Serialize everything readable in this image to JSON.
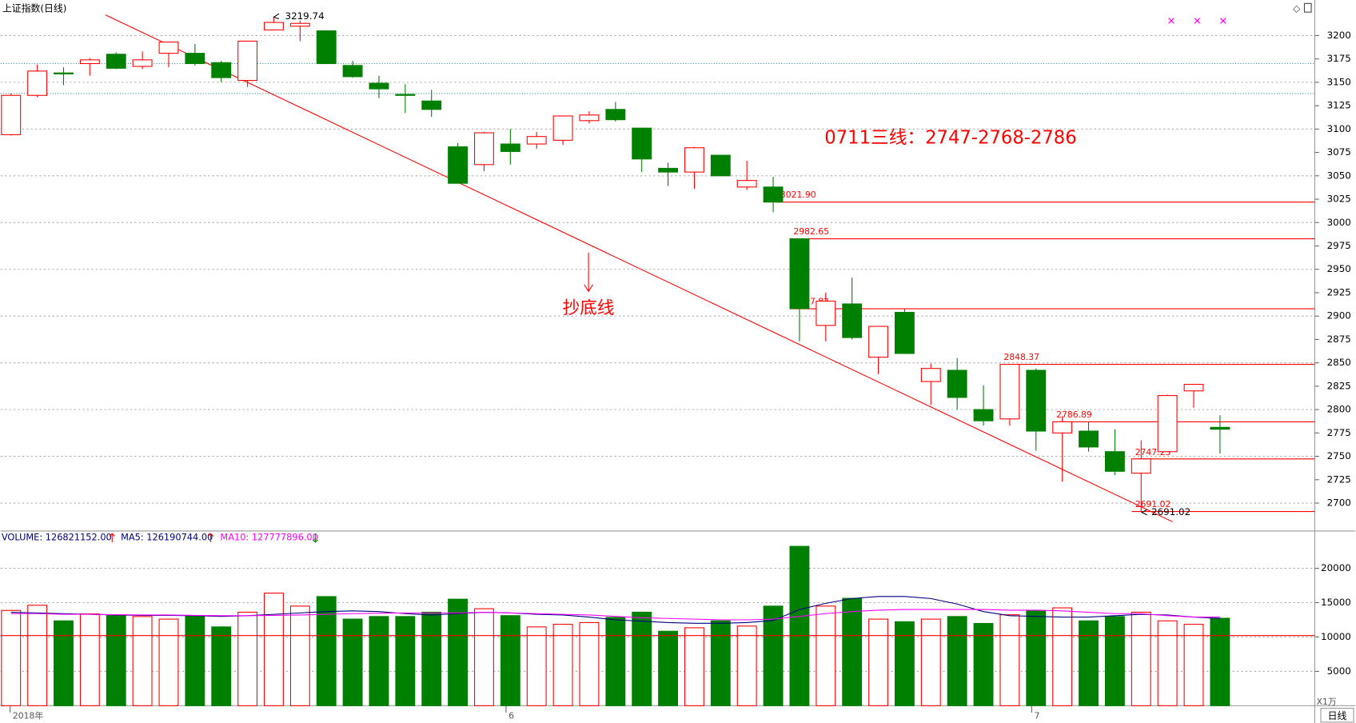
{
  "header": {
    "title": "上证指数(日线)",
    "tab": "日线",
    "unit": "X1万"
  },
  "chart_data": [
    {
      "type": "candlestick",
      "categories": [
        "2018年",
        null,
        null,
        null,
        null,
        null,
        null,
        null,
        null,
        null,
        null,
        null,
        null,
        null,
        null,
        null,
        null,
        null,
        null,
        "6",
        null,
        null,
        null,
        null,
        null,
        null,
        null,
        null,
        null,
        null,
        null,
        null,
        null,
        null,
        null,
        null,
        null,
        null,
        null,
        "7",
        null,
        null,
        null,
        null,
        null,
        null,
        null
      ],
      "open": [
        3094,
        3136,
        3160,
        3170,
        3180,
        3167,
        3181,
        3181,
        3171,
        3152,
        3206,
        3210,
        3205,
        3168,
        3149,
        3137,
        3130,
        3081,
        3062,
        3084,
        3084,
        3088,
        3109,
        3121,
        3101,
        3058,
        3054,
        3072,
        3038,
        3038,
        2982.65,
        2890,
        2913,
        2856,
        2904,
        2830,
        2842,
        2800,
        2790,
        2842,
        2775,
        2777,
        2755,
        2732,
        2755,
        2820,
        2781
      ],
      "high": [
        3138,
        3169,
        3166,
        3176,
        3182,
        3183,
        3193,
        3191,
        3173,
        3194,
        3219.74,
        3216,
        3205,
        3173,
        3157,
        3148,
        3142,
        3085,
        3097,
        3100,
        3097,
        3114,
        3119,
        3129,
        3101,
        3064,
        3081,
        3072,
        3066,
        3049,
        2983,
        2925,
        2941,
        2889,
        2908,
        2849,
        2855,
        2826,
        2848.37,
        2844,
        2793,
        2787,
        2779,
        2767,
        2816,
        2827,
        2794
      ],
      "low": [
        3093,
        3134,
        3147,
        3157,
        3164,
        3164,
        3166,
        3168,
        3150,
        3145,
        3206,
        3194,
        3170,
        3155,
        3133,
        3117,
        3113,
        3042,
        3055,
        3062,
        3079,
        3083,
        3106,
        3108,
        3054,
        3039,
        3036,
        3050,
        3035,
        3011,
        2873,
        2873,
        2875,
        2838,
        2860,
        2805,
        2800,
        2783,
        2783,
        2756,
        2723,
        2755,
        2730,
        2691.02,
        2755,
        2802,
        2753
      ],
      "close": [
        3136,
        3162,
        3159,
        3174,
        3165,
        3174,
        3193,
        3170,
        3155,
        3194,
        3214,
        3213,
        3170,
        3156,
        3143,
        3136,
        3121,
        3042,
        3096,
        3076,
        3092,
        3114,
        3115,
        3110,
        3068,
        3054,
        3080,
        3050,
        3045,
        3021.9,
        2908,
        2916,
        2877,
        2889,
        2860,
        2844,
        2813,
        2788,
        2848.37,
        2777,
        2786.89,
        2760,
        2734,
        2747.23,
        2815,
        2827,
        2779
      ],
      "up_color": "#ff0000",
      "down_color": "#008000",
      "ylim": [
        2672,
        3238
      ],
      "yticks": [
        2700,
        2725,
        2750,
        2775,
        2800,
        2825,
        2850,
        2875,
        2900,
        2925,
        2950,
        2975,
        3000,
        3025,
        3050,
        3075,
        3100,
        3125,
        3150,
        3175,
        3200
      ],
      "grid": true,
      "levels": [
        {
          "value": 3021.9,
          "label": "3021.90"
        },
        2982.65,
        2907.82,
        2848.37,
        2786.89,
        2747.23,
        2691.02
      ],
      "guide_lines": [
        3170,
        3138
      ],
      "trendline": {
        "x": [
          3.6,
          44.2
        ],
        "y": [
          3222,
          2680
        ]
      },
      "high_marker": 3219.74,
      "low_marker": 2691.02,
      "annotations": [
        "0711三线：2747-2768-2786",
        "抄底线"
      ]
    },
    {
      "type": "volume",
      "series": [
        {
          "name": "VOLUME: 126821152.00",
          "color": "#000080",
          "values": [
            13865,
            14620,
            12352,
            13360,
            13108,
            12982,
            12604,
            13108,
            11470,
            13612,
            16385,
            14495,
            15881,
            12604,
            12982,
            12982,
            13612,
            15503,
            14116,
            13108,
            11470,
            11848,
            12100,
            12856,
            13612,
            10839,
            11343,
            12352,
            11596,
            14495,
            23191,
            14495,
            15629,
            12604,
            12226,
            12604,
            12982,
            11974,
            13234,
            13865,
            14242,
            12352,
            12982,
            13612,
            12352,
            11848,
            12730
          ]
        },
        {
          "name": "MA5: 126190744.00",
          "color": "#000080",
          "values": [
            13600,
            13500,
            13400,
            13300,
            13200,
            13150,
            13150,
            13100,
            13000,
            13100,
            13300,
            13500,
            13700,
            13800,
            13700,
            13400,
            13200,
            13400,
            13600,
            13500,
            13300,
            13200,
            12900,
            12500,
            12300,
            12100,
            12000,
            12000,
            12100,
            12400,
            14000,
            14900,
            15600,
            15900,
            15900,
            15600,
            14800,
            13700,
            13100,
            13000,
            12900,
            12900,
            13100,
            13300,
            13200,
            12900,
            12700
          ]
        },
        {
          "name": "MA10: 127777896.00",
          "color": "#ff00ff",
          "values": [
            13400,
            13400,
            13300,
            13300,
            13250,
            13200,
            13200,
            13150,
            13100,
            13100,
            13150,
            13200,
            13300,
            13400,
            13450,
            13500,
            13500,
            13500,
            13600,
            13500,
            13400,
            13300,
            13200,
            13000,
            12800,
            12700,
            12600,
            12500,
            12500,
            12600,
            13000,
            13400,
            13700,
            13900,
            14000,
            14000,
            14000,
            14000,
            13900,
            13900,
            13800,
            13600,
            13400,
            13400,
            13100,
            12900,
            12900
          ]
        }
      ],
      "ylim": [
        0,
        25300
      ],
      "yticks": [
        5000,
        10000,
        15000,
        20000
      ],
      "grid": true,
      "reference_line": 10209
    }
  ]
}
